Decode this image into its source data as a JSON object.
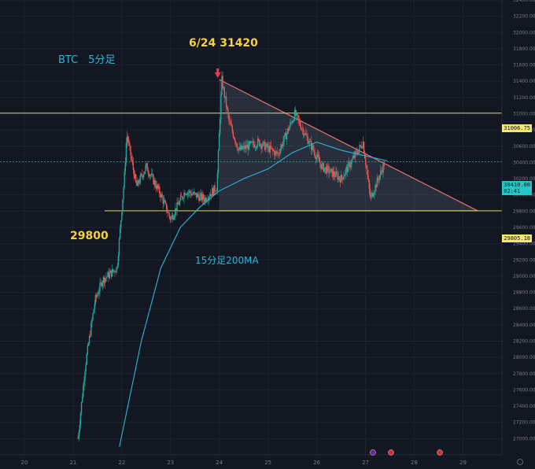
{
  "annotations": {
    "asset": "BTC　5分足",
    "peak": "6/24 31420",
    "support": "29800",
    "ma": "15分足200MA"
  },
  "price_tags": {
    "upper": "31006.75",
    "last": "30410.00",
    "last_sub": "02:41",
    "lower": "29805.18"
  },
  "colors": {
    "background": "#131722",
    "up": "#26a69a",
    "down": "#ef5350",
    "ma": "#29b6d8",
    "hline": "#d8d35c",
    "triangle_edge": "#e57373",
    "arrow": "#f23645"
  },
  "chart_data": {
    "type": "candlestick",
    "timeframe": "5m",
    "x_ticks": [
      "20",
      "21",
      "22",
      "23",
      "24",
      "25",
      "26",
      "27",
      "28",
      "29"
    ],
    "y_ticks": [
      27000,
      27200,
      27400,
      27600,
      27800,
      28000,
      28200,
      28400,
      28600,
      28800,
      29000,
      29200,
      29400,
      29600,
      29800,
      30000,
      30200,
      30400,
      30600,
      30800,
      31000,
      31200,
      31400,
      31600,
      31800,
      32000,
      32200,
      32400
    ],
    "ylim": [
      26800,
      32400
    ],
    "xlim": [
      19.5,
      29.8
    ],
    "horizontal_lines": [
      31006.75,
      29805.18
    ],
    "triangle": {
      "apex_top": {
        "x": 24.0,
        "y": 31420
      },
      "apex_right": {
        "x": 29.3,
        "y": 29805
      },
      "base_left": {
        "x": 24.0,
        "y": 29805
      }
    },
    "ohlc_path": [
      {
        "x": 21.1,
        "y": 27000
      },
      {
        "x": 21.25,
        "y": 27900
      },
      {
        "x": 21.45,
        "y": 28700
      },
      {
        "x": 21.6,
        "y": 28950
      },
      {
        "x": 21.9,
        "y": 29100
      },
      {
        "x": 22.05,
        "y": 30200
      },
      {
        "x": 22.1,
        "y": 30750
      },
      {
        "x": 22.3,
        "y": 30100
      },
      {
        "x": 22.5,
        "y": 30350
      },
      {
        "x": 22.8,
        "y": 30000
      },
      {
        "x": 23.0,
        "y": 29700
      },
      {
        "x": 23.3,
        "y": 30050
      },
      {
        "x": 23.7,
        "y": 29950
      },
      {
        "x": 23.95,
        "y": 30100
      },
      {
        "x": 24.05,
        "y": 31420
      },
      {
        "x": 24.2,
        "y": 30900
      },
      {
        "x": 24.4,
        "y": 30550
      },
      {
        "x": 24.8,
        "y": 30650
      },
      {
        "x": 25.2,
        "y": 30500
      },
      {
        "x": 25.55,
        "y": 31000
      },
      {
        "x": 25.8,
        "y": 30700
      },
      {
        "x": 26.1,
        "y": 30350
      },
      {
        "x": 26.5,
        "y": 30200
      },
      {
        "x": 26.95,
        "y": 30650
      },
      {
        "x": 27.1,
        "y": 29950
      },
      {
        "x": 27.4,
        "y": 30410
      }
    ],
    "ma_label": "15分足200MA",
    "ma_path": [
      {
        "x": 21.95,
        "y": 26900
      },
      {
        "x": 22.4,
        "y": 28200
      },
      {
        "x": 22.8,
        "y": 29100
      },
      {
        "x": 23.2,
        "y": 29600
      },
      {
        "x": 23.6,
        "y": 29850
      },
      {
        "x": 24.0,
        "y": 30050
      },
      {
        "x": 24.5,
        "y": 30200
      },
      {
        "x": 25.0,
        "y": 30320
      },
      {
        "x": 25.5,
        "y": 30520
      },
      {
        "x": 26.0,
        "y": 30650
      },
      {
        "x": 26.5,
        "y": 30550
      },
      {
        "x": 27.0,
        "y": 30480
      },
      {
        "x": 27.45,
        "y": 30420
      }
    ],
    "last_price": 30410.0
  }
}
